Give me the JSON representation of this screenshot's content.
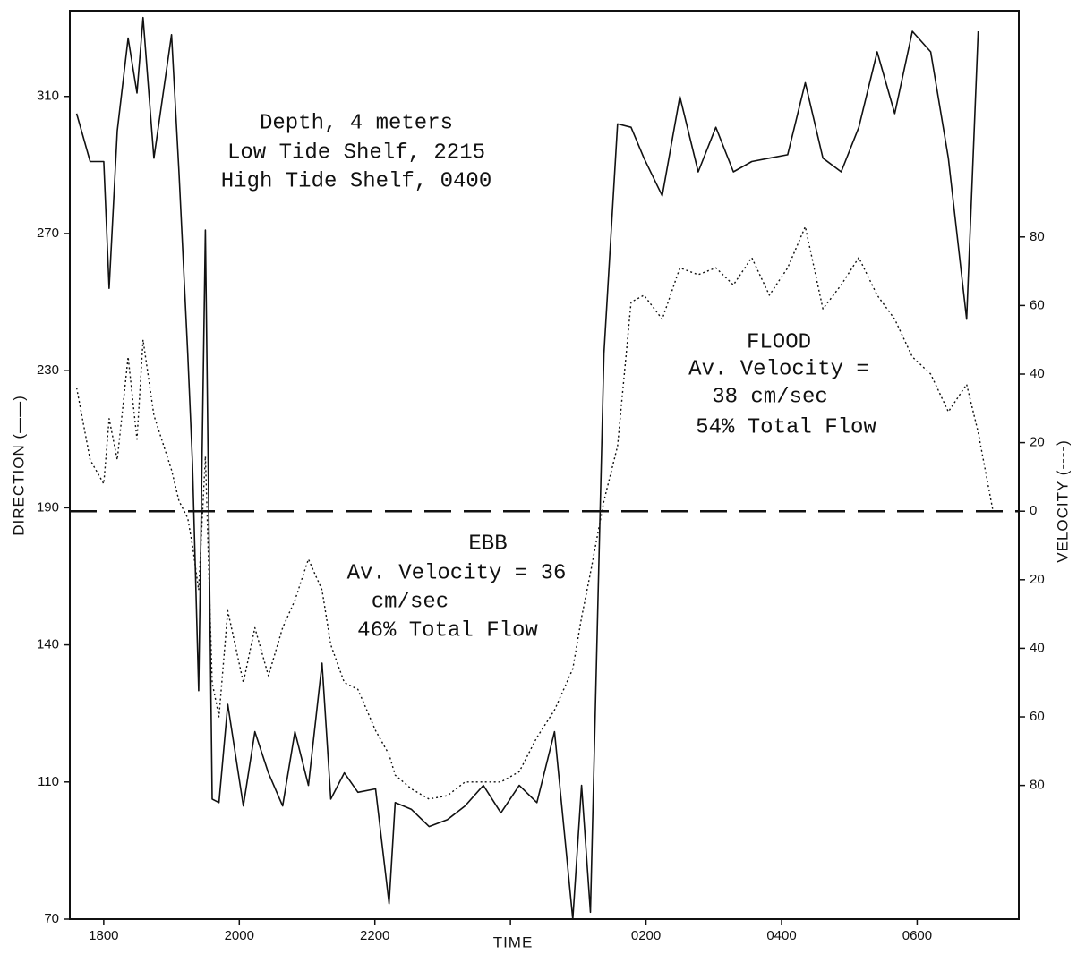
{
  "chart_data": {
    "type": "line",
    "x_label": "TIME",
    "y_label": "DIRECTION (——)",
    "y2_label": "VELOCITY (----)",
    "annotations": [
      "Depth, 4 meters",
      "Low Tide Shelf, 2215",
      "High Tide Shelf, 0400",
      "FLOOD",
      "Av. Velocity =",
      "38 cm/sec",
      "54% Total Flow",
      "EBB",
      "Av. Velocity = 36",
      "cm/sec",
      "46% Total Flow"
    ],
    "xlim": [
      17.5,
      31.5
    ],
    "xticks": [
      {
        "value": 18,
        "label": "1800"
      },
      {
        "value": 20,
        "label": "2000"
      },
      {
        "value": 22,
        "label": "2200"
      },
      {
        "value": 24,
        "label": null
      },
      {
        "value": 26,
        "label": "0200"
      },
      {
        "value": 28,
        "label": "0400"
      },
      {
        "value": 30,
        "label": "0600"
      }
    ],
    "ylim": [
      70,
      335
    ],
    "yticks": [
      70,
      110,
      140,
      190,
      230,
      270,
      310
    ],
    "y_scale": "tick-spaced",
    "y2lim": [
      -119,
      146
    ],
    "y2ticks": [
      {
        "value": -80,
        "label": "80"
      },
      {
        "value": -60,
        "label": "60"
      },
      {
        "value": -40,
        "label": "40"
      },
      {
        "value": -20,
        "label": "20"
      },
      0,
      20,
      40,
      60,
      80
    ],
    "zero_line": true,
    "x": [
      17.6,
      17.8,
      18.0,
      18.08,
      18.2,
      18.36,
      18.49,
      18.58,
      18.74,
      19.0,
      19.11,
      19.24,
      19.31,
      19.4,
      19.5,
      19.6,
      19.7,
      19.83,
      20.06,
      20.23,
      20.43,
      20.64,
      20.82,
      21.02,
      21.22,
      21.35,
      21.55,
      21.75,
      22.01,
      22.21,
      22.3,
      22.54,
      22.8,
      23.07,
      23.33,
      23.6,
      23.86,
      24.13,
      24.39,
      24.65,
      24.92,
      25.05,
      25.18,
      25.38,
      25.58,
      25.78,
      25.97,
      26.24,
      26.5,
      26.77,
      27.03,
      27.29,
      27.56,
      27.82,
      28.09,
      28.35,
      28.61,
      28.88,
      29.14,
      29.41,
      29.67,
      29.93,
      30.2,
      30.46,
      30.73,
      30.9,
      31.12
    ],
    "series": [
      {
        "color": "#111111",
        "style": "solid",
        "axis": "y",
        "values": [
          305,
          291,
          291,
          254,
          300,
          327,
          311,
          333,
          292,
          328,
          288,
          235,
          203,
          130,
          271,
          105,
          104,
          127,
          103,
          121,
          112,
          103,
          121,
          109,
          136,
          105,
          112,
          107,
          108,
          74.5,
          104,
          102,
          97,
          99,
          103,
          109,
          101,
          109,
          104,
          121,
          70,
          109,
          72,
          235,
          302,
          301,
          292,
          281,
          310,
          288,
          301,
          288,
          291,
          292,
          293,
          314,
          292,
          288,
          301,
          323,
          305,
          329,
          323,
          292,
          245,
          329,
          null
        ]
      },
      {
        "color": "#111111",
        "style": "dotted",
        "axis": "y2",
        "values": [
          36,
          15,
          8,
          27,
          15,
          45,
          21,
          50,
          28,
          12,
          3,
          -2,
          -10,
          -23,
          16,
          -50,
          -60,
          -29,
          -50,
          -34,
          -48,
          -34,
          -26,
          -14,
          -23,
          -39,
          -50,
          -52,
          -64,
          -71,
          -77,
          -81,
          -84,
          -83,
          -79,
          -79,
          -79,
          -76,
          -66,
          -58,
          -46,
          -31,
          -18,
          3,
          19,
          61,
          63,
          56,
          71,
          69,
          71,
          66,
          74,
          63,
          71,
          83,
          59,
          66,
          74,
          63,
          56,
          45,
          40,
          29,
          37,
          23,
          0
        ]
      }
    ]
  }
}
